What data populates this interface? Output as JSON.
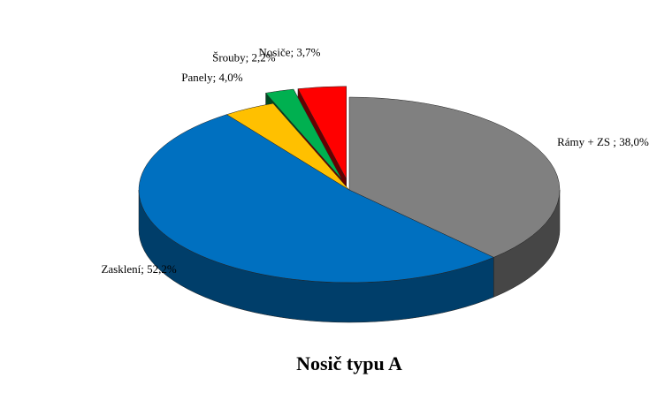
{
  "chart_data": {
    "type": "pie",
    "title": "Nosič typu A",
    "values": [
      38.0,
      52.2,
      4.0,
      2.2,
      3.7
    ],
    "value_labels": [
      "Rámy + ZS ; 38,0%",
      "Zasklení; 52,2%",
      "Panely; 4,0%",
      "Šrouby; 2,2%",
      "Nosiče; 3,7%"
    ],
    "colors": [
      "#808080",
      "#0070c0",
      "#ffc000",
      "#00b050",
      "#ff0000"
    ],
    "exploded": [
      3,
      4
    ]
  }
}
